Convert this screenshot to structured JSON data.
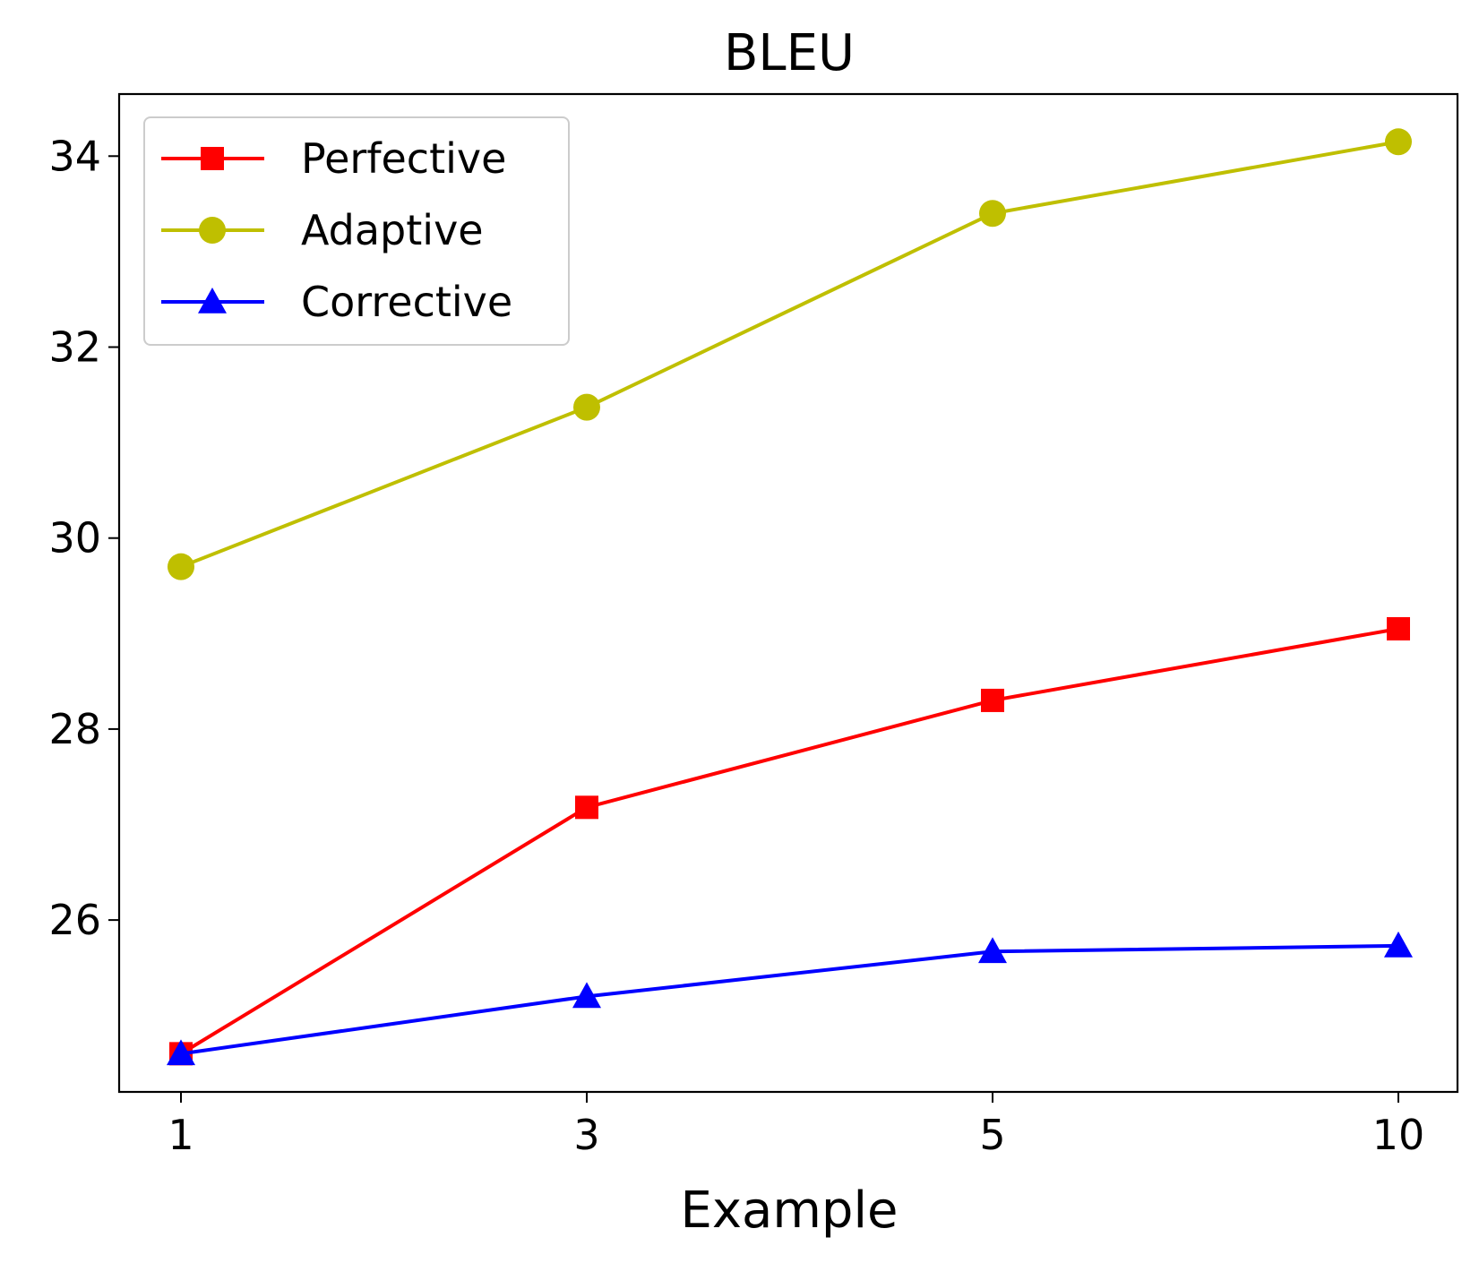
{
  "chart_data": {
    "type": "line",
    "title": "BLEU",
    "xlabel": "Example",
    "ylabel": "",
    "categories": [
      "1",
      "3",
      "5",
      "10"
    ],
    "ylim": [
      24.2,
      34.65
    ],
    "yticks": [
      26,
      28,
      30,
      32,
      34
    ],
    "grid": false,
    "legend_position": "top-left",
    "series": [
      {
        "name": "Perfective",
        "color": "#ff0000",
        "marker": "square",
        "values": [
          24.6,
          27.18,
          28.3,
          29.05
        ]
      },
      {
        "name": "Adaptive",
        "color": "#bfbf00",
        "marker": "circle",
        "values": [
          29.7,
          31.37,
          33.4,
          34.15
        ]
      },
      {
        "name": "Corrective",
        "color": "#0000ff",
        "marker": "triangle",
        "values": [
          24.6,
          25.2,
          25.67,
          25.73
        ]
      }
    ]
  }
}
